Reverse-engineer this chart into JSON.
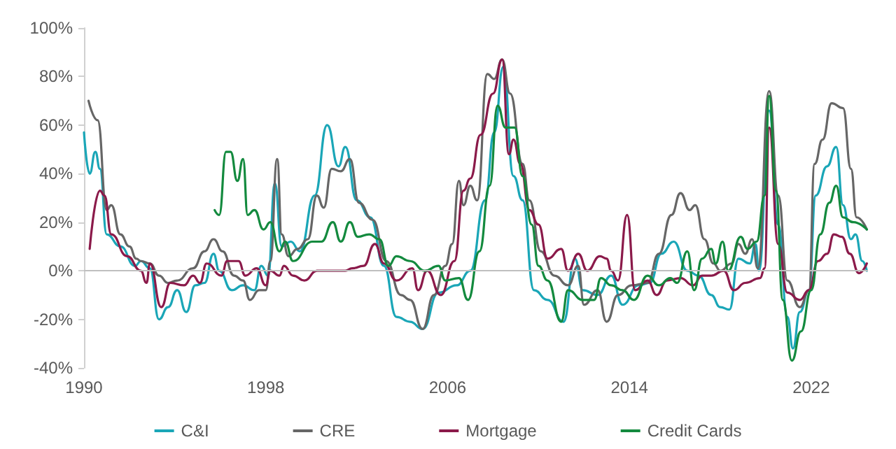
{
  "chart_data": {
    "type": "line",
    "legend": "bottom",
    "grid": false,
    "marker": "none",
    "line_style": "solid",
    "ref_lines": [
      {
        "axis": "y",
        "value": 0,
        "color": "#bfbfbf",
        "line_style": "solid"
      }
    ],
    "xlim": [
      1990,
      2024.5
    ],
    "xticks": [
      1990,
      1998,
      2006,
      2014,
      2022
    ],
    "ylim": [
      -40,
      100
    ],
    "yticks": [
      {
        "value": -40,
        "label": "-40%"
      },
      {
        "value": -20,
        "label": "-20%"
      },
      {
        "value": 0,
        "label": "0%"
      },
      {
        "value": 20,
        "label": "20%"
      },
      {
        "value": 40,
        "label": "40%"
      },
      {
        "value": 60,
        "label": "60%"
      },
      {
        "value": 80,
        "label": "80%"
      },
      {
        "value": 100,
        "label": "100%"
      }
    ],
    "series": [
      {
        "name": "C&I",
        "color": "#1aa6b7",
        "x": [
          1990,
          1990.25,
          1990.5,
          1990.7,
          1991.0,
          1991.6,
          1992.25,
          1992.5,
          1992.9,
          1993.3,
          1993.7,
          1994.1,
          1994.5,
          1994.9,
          1995.3,
          1995.7,
          1995.95,
          1996.5,
          1997.0,
          1997.5,
          1997.8,
          1998.1,
          1998.4,
          1998.7,
          1999.1,
          1999.5,
          2000.15,
          2000.7,
          2001.2,
          2001.5,
          2002.0,
          2002.6,
          2003.2,
          2003.75,
          2004.35,
          2004.9,
          2005.6,
          2006.4,
          2007.0,
          2007.65,
          2008.05,
          2008.45,
          2008.9,
          2009.3,
          2009.8,
          2010.4,
          2011.1,
          2011.6,
          2011.95,
          2012.6,
          2013.2,
          2013.7,
          2014.4,
          2014.9,
          2015.4,
          2015.95,
          2016.55,
          2017.05,
          2017.6,
          2018.0,
          2018.4,
          2018.8,
          2019.3,
          2019.55,
          2019.7,
          2020.15,
          2020.55,
          2020.95,
          2021.2,
          2021.5,
          2021.9,
          2022.2,
          2022.7,
          2023.1,
          2023.4,
          2023.75,
          2023.95,
          2024.25,
          2024.45
        ],
        "values": [
          57,
          40,
          49,
          42,
          15,
          10,
          2,
          4,
          1,
          -20,
          -15,
          -8,
          -17,
          -6,
          -5,
          7,
          0,
          -8,
          -6,
          -8,
          2,
          -2,
          36,
          10,
          12,
          8,
          31,
          60,
          43,
          51,
          29,
          22,
          2,
          -19,
          -21,
          -24,
          -9,
          -6,
          0,
          29,
          57,
          84,
          39,
          29,
          -8,
          -12,
          -21,
          5,
          -8,
          -10,
          -2,
          -14,
          -6,
          -5,
          7,
          12,
          0,
          -2,
          -10,
          -15,
          -16,
          5,
          3,
          11,
          0,
          66,
          19,
          -19,
          -32,
          -17,
          -8,
          31,
          43,
          51,
          27,
          13,
          15,
          4,
          0
        ]
      },
      {
        "name": "CRE",
        "color": "#666666",
        "x": [
          1990.2,
          1990.6,
          1991.0,
          1991.2,
          1991.6,
          1992.0,
          1992.3,
          1992.5,
          1992.9,
          1993.3,
          1993.7,
          1994.1,
          1994.8,
          1995.3,
          1995.7,
          1996.1,
          1996.6,
          1997.0,
          1997.3,
          1997.7,
          1998.0,
          1998.2,
          1998.5,
          1998.7,
          1999.0,
          1999.4,
          1999.85,
          2000.25,
          2000.55,
          2000.9,
          2001.3,
          2001.7,
          2002.1,
          2002.7,
          2003.3,
          2003.95,
          2004.35,
          2004.9,
          2005.4,
          2005.9,
          2006.2,
          2006.5,
          2006.7,
          2007.0,
          2007.3,
          2007.75,
          2008.05,
          2008.4,
          2008.75,
          2009.3,
          2009.6,
          2010.1,
          2010.7,
          2011.3,
          2011.75,
          2012.0,
          2012.6,
          2013.0,
          2013.5,
          2014.1,
          2014.8,
          2015.3,
          2015.85,
          2016.25,
          2016.65,
          2016.9,
          2017.3,
          2017.7,
          2018.0,
          2018.5,
          2018.8,
          2019.1,
          2019.4,
          2019.65,
          2020.15,
          2020.55,
          2020.95,
          2021.5,
          2021.9,
          2022.15,
          2022.5,
          2022.9,
          2023.4,
          2023.75,
          2024.0,
          2024.45
        ],
        "values": [
          70,
          62,
          25,
          27,
          15,
          10,
          5,
          4,
          3,
          -2,
          -5,
          -4,
          1,
          8,
          13,
          8,
          -2,
          -4,
          -12,
          -8,
          -8,
          4,
          46,
          15,
          6,
          9,
          13,
          31,
          26,
          42,
          41,
          46,
          28,
          21,
          4,
          -10,
          -12,
          -24,
          -10,
          2,
          11,
          37,
          27,
          35,
          29,
          81,
          79,
          87,
          73,
          44,
          29,
          8,
          -2,
          -6,
          2,
          -14,
          -8,
          -21,
          -10,
          -6,
          -5,
          7,
          23,
          32,
          25,
          27,
          13,
          3,
          0,
          3,
          11,
          7,
          13,
          1,
          74,
          31,
          -4,
          -15,
          -8,
          44,
          54,
          69,
          67,
          42,
          22,
          17
        ]
      },
      {
        "name": "Mortgage",
        "color": "#8b1a4a",
        "x": [
          1990.25,
          1990.7,
          1990.9,
          1991.2,
          1991.9,
          1992.5,
          1992.75,
          1992.9,
          1993.4,
          1993.8,
          1994.4,
          1994.8,
          1995.1,
          1995.4,
          1996.05,
          1996.3,
          1996.8,
          1997.1,
          1997.6,
          1998.0,
          1998.2,
          1998.6,
          1998.8,
          1999.2,
          1999.7,
          2000.25,
          2001.5,
          2001.8,
          2002.3,
          2002.8,
          2003.2,
          2003.75,
          2004.45,
          2004.7,
          2005.1,
          2005.7,
          2006.3,
          2006.7,
          2007.0,
          2007.45,
          2008.0,
          2008.4,
          2008.7,
          2008.9,
          2009.2,
          2009.6,
          2010.0,
          2010.4,
          2011.0,
          2011.3,
          2011.75,
          2012.15,
          2012.7,
          2013.0,
          2013.2,
          2013.5,
          2013.9,
          2014.25,
          2014.8,
          2015.2,
          2015.65,
          2016.25,
          2016.8,
          2017.2,
          2017.6,
          2018.15,
          2018.6,
          2019.1,
          2019.75,
          2019.95,
          2020.15,
          2020.55,
          2020.95,
          2021.5,
          2021.9,
          2022.3,
          2022.7,
          2023.0,
          2023.35,
          2023.7,
          2024.1,
          2024.45
        ],
        "values": [
          9,
          33,
          31,
          15,
          6,
          0,
          -5,
          3,
          -15,
          -5,
          -6,
          -2,
          -5,
          3,
          -2,
          4,
          4,
          -2,
          1,
          -6,
          0,
          -2,
          2,
          -2,
          -4,
          0,
          0,
          1,
          2,
          11,
          3,
          -4,
          1,
          -8,
          0,
          -10,
          4,
          33,
          38,
          56,
          73,
          87,
          48,
          54,
          44,
          25,
          19,
          5,
          9,
          0,
          7,
          0,
          6,
          5,
          0,
          -4,
          23,
          -8,
          -4,
          -10,
          -4,
          -3,
          -6,
          -2,
          -2,
          0,
          -8,
          -5,
          -3,
          1,
          59,
          11,
          -9,
          -12,
          -8,
          4,
          7,
          15,
          14,
          7,
          -1,
          3
        ]
      },
      {
        "name": "Credit Cards",
        "color": "#138a3e",
        "x": [
          1995.75,
          1995.95,
          1996.25,
          1996.45,
          1996.75,
          1997.0,
          1997.2,
          1997.5,
          1997.9,
          1998.2,
          1998.6,
          1998.85,
          1999.2,
          2000.05,
          2000.45,
          2000.95,
          2001.3,
          2001.7,
          2002.05,
          2002.55,
          2003.0,
          2003.4,
          2003.75,
          2004.35,
          2005.0,
          2005.6,
          2005.9,
          2006.5,
          2006.9,
          2007.4,
          2007.85,
          2008.2,
          2008.55,
          2008.95,
          2009.3,
          2009.7,
          2010.0,
          2010.4,
          2011.0,
          2011.3,
          2011.95,
          2012.45,
          2012.75,
          2013.2,
          2013.7,
          2014.2,
          2014.8,
          2015.3,
          2015.8,
          2016.1,
          2016.55,
          2016.85,
          2017.2,
          2017.6,
          2017.8,
          2018.1,
          2018.35,
          2018.9,
          2019.2,
          2019.6,
          2019.95,
          2020.15,
          2020.45,
          2020.75,
          2021.15,
          2021.55,
          2022.0,
          2022.4,
          2022.8,
          2023.1,
          2023.4,
          2023.85,
          2024.45
        ],
        "values": [
          25,
          23,
          49,
          49,
          37,
          46,
          23,
          25,
          17,
          20,
          8,
          12,
          4,
          12,
          12,
          20,
          12,
          20,
          14,
          15,
          13,
          2,
          6,
          4,
          0,
          2,
          -4,
          -3,
          -12,
          8,
          35,
          68,
          59,
          59,
          39,
          19,
          2,
          -4,
          -21,
          -8,
          -12,
          -12,
          -3,
          -6,
          -8,
          -12,
          -2,
          -6,
          -3,
          -5,
          8,
          -8,
          5,
          9,
          3,
          12,
          0,
          14,
          9,
          12,
          31,
          72,
          33,
          -12,
          -37,
          -25,
          -8,
          15,
          28,
          35,
          22,
          20,
          17
        ]
      }
    ]
  }
}
